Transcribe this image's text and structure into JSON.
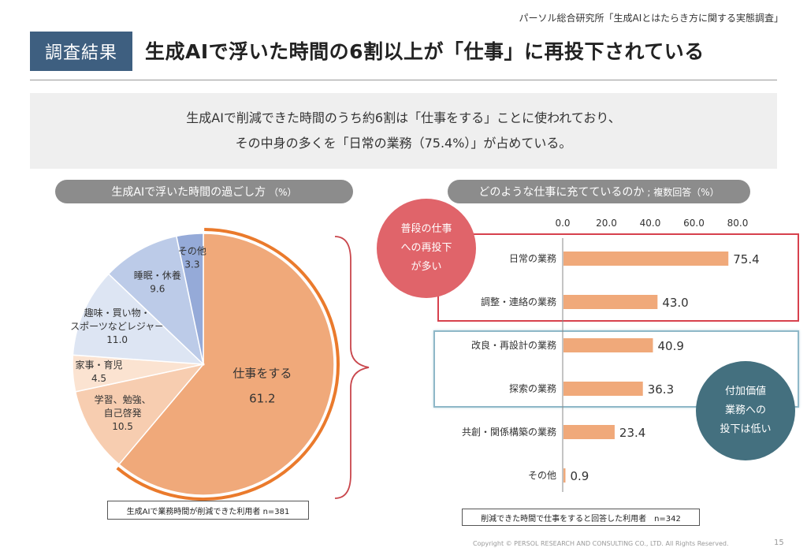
{
  "header": {
    "source": "パーソル総合研究所「生成AIとはたらき方に関する実態調査」",
    "badge": "調査結果",
    "headline": "生成AIで浮いた時間の6割以上が「仕事」に再投下されている"
  },
  "summary": {
    "line1": "生成AIで削減できた時間のうち約6割は「仕事をする」ことに使われており、",
    "line2": "その中身の多くを「日常の業務（75.4%）」が占めている。"
  },
  "callouts": {
    "red": [
      "普段の仕事",
      "への再投下",
      "が多い"
    ],
    "teal": [
      "付加価値",
      "業務への",
      "投下は低い"
    ]
  },
  "footer": {
    "copyright": "Copyright © PERSOL RESEARCH AND CONSULTING CO., LTD. All Rights Reserved.",
    "page": "15"
  },
  "chart_data": [
    {
      "type": "pie",
      "title": "生成AIで浮いた時間の過ごし方",
      "unit": "（%）",
      "note": "生成AIで業務時間が削減できた利用者 n=381",
      "slices": [
        {
          "label": "仕事をする",
          "value": 61.2,
          "color": "#f0a97a"
        },
        {
          "label": "学習、勉強、自己啓発",
          "value": 10.5,
          "color": "#f7cdb0"
        },
        {
          "label": "家事・育児",
          "value": 4.5,
          "color": "#fbe3d1"
        },
        {
          "label": "趣味・買い物・スポーツなどレジャー",
          "value": 11.0,
          "color": "#dde5f3"
        },
        {
          "label": "睡眠・休養",
          "value": 9.6,
          "color": "#bccbe8"
        },
        {
          "label": "その他",
          "value": 3.3,
          "color": "#95aad8"
        }
      ],
      "slice_label_lines": [
        [
          "仕事をする"
        ],
        [
          "学習、勉強、",
          "自己啓発"
        ],
        [
          "家事・育児"
        ],
        [
          "趣味・買い物・",
          "スポーツなどレジャー"
        ],
        [
          "睡眠・休養"
        ],
        [
          "その他"
        ]
      ]
    },
    {
      "type": "bar",
      "orientation": "horizontal",
      "title": "どのような仕事に充てているのか",
      "subtitle": "; 複数回答（%）",
      "note": "削減できた時間で仕事をすると回答した利用者　n=342",
      "categories": [
        "日常の業務",
        "調整・連絡の業務",
        "改良・再設計の業務",
        "探索の業務",
        "共創・関係構築の業務",
        "その他"
      ],
      "values": [
        75.4,
        43.0,
        40.9,
        36.3,
        23.4,
        0.9
      ],
      "value_labels": [
        "75.4",
        "43.0",
        "40.9",
        "36.3",
        "23.4",
        "0.9"
      ],
      "xlim": [
        0,
        80
      ],
      "ticks": [
        "0.0",
        "20.0",
        "40.0",
        "60.0",
        "80.0"
      ],
      "color": "#f0a97a"
    }
  ]
}
